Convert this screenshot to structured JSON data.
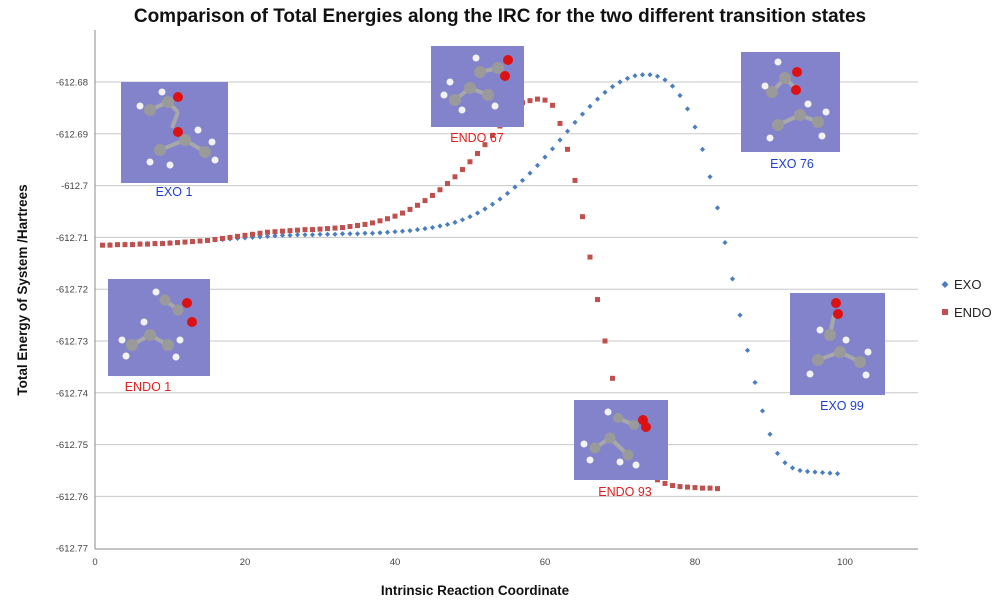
{
  "chart_data": {
    "type": "scatter",
    "title": "Comparison of Total Energies along the IRC for the two different transition states",
    "xlabel": "Intrinsic Reaction Coordinate",
    "ylabel": "Total Energy of System /Hartrees",
    "xlim": [
      0,
      110
    ],
    "ylim": [
      -612.77,
      -612.67
    ],
    "xticks": [
      0,
      20,
      40,
      60,
      80,
      100
    ],
    "xtick_labels": [
      "0",
      "20",
      "40",
      "60",
      "80",
      "100"
    ],
    "yticks": [
      -612.68,
      -612.69,
      -612.7,
      -612.71,
      -612.72,
      -612.73,
      -612.74,
      -612.75,
      -612.76,
      -612.77
    ],
    "ytick_labels": [
      "-612.68",
      "-612.69",
      "-612.7",
      "-612.71",
      "-612.72",
      "-612.73",
      "-612.74",
      "-612.75",
      "-612.76",
      "-612.77"
    ],
    "grid": "horizontal",
    "legend_position": "right",
    "series": [
      {
        "name": "EXO",
        "color": "#4a7ebf",
        "marker": "diamond",
        "points": [
          [
            1,
            -612.7115
          ],
          [
            2,
            -612.7114
          ],
          [
            3,
            -612.7114
          ],
          [
            4,
            -612.7113
          ],
          [
            5,
            -612.7113
          ],
          [
            6,
            -612.7112
          ],
          [
            7,
            -612.7112
          ],
          [
            8,
            -612.7111
          ],
          [
            9,
            -612.7111
          ],
          [
            10,
            -612.711
          ],
          [
            11,
            -612.711
          ],
          [
            12,
            -612.7109
          ],
          [
            13,
            -612.7108
          ],
          [
            14,
            -612.7107
          ],
          [
            15,
            -612.7106
          ],
          [
            16,
            -612.7105
          ],
          [
            17,
            -612.7104
          ],
          [
            18,
            -612.7103
          ],
          [
            19,
            -612.7102
          ],
          [
            20,
            -612.7101
          ],
          [
            21,
            -612.71
          ],
          [
            22,
            -612.7099
          ],
          [
            23,
            -612.7098
          ],
          [
            24,
            -612.7097
          ],
          [
            25,
            -612.7096
          ],
          [
            26,
            -612.7096
          ],
          [
            27,
            -612.7095
          ],
          [
            28,
            -612.7095
          ],
          [
            29,
            -612.7095
          ],
          [
            30,
            -612.7094
          ],
          [
            31,
            -612.7094
          ],
          [
            32,
            -612.7094
          ],
          [
            33,
            -612.7093
          ],
          [
            34,
            -612.7093
          ],
          [
            35,
            -612.7093
          ],
          [
            36,
            -612.7092
          ],
          [
            37,
            -612.7092
          ],
          [
            38,
            -612.7091
          ],
          [
            39,
            -612.709
          ],
          [
            40,
            -612.7089
          ],
          [
            41,
            -612.7088
          ],
          [
            42,
            -612.7087
          ],
          [
            43,
            -612.7085
          ],
          [
            44,
            -612.7083
          ],
          [
            45,
            -612.7081
          ],
          [
            46,
            -612.7078
          ],
          [
            47,
            -612.7075
          ],
          [
            48,
            -612.7071
          ],
          [
            49,
            -612.7066
          ],
          [
            50,
            -612.706
          ],
          [
            51,
            -612.7053
          ],
          [
            52,
            -612.7045
          ],
          [
            53,
            -612.7036
          ],
          [
            54,
            -612.7026
          ],
          [
            55,
            -612.7015
          ],
          [
            56,
            -612.7003
          ],
          [
            57,
            -612.699
          ],
          [
            58,
            -612.6976
          ],
          [
            59,
            -612.6961
          ],
          [
            60,
            -612.6945
          ],
          [
            61,
            -612.6929
          ],
          [
            62,
            -612.6912
          ],
          [
            63,
            -612.6895
          ],
          [
            64,
            -612.6878
          ],
          [
            65,
            -612.6862
          ],
          [
            66,
            -612.6847
          ],
          [
            67,
            -612.6833
          ],
          [
            68,
            -612.682
          ],
          [
            69,
            -612.6809
          ],
          [
            70,
            -612.68
          ],
          [
            71,
            -612.6793
          ],
          [
            72,
            -612.6788
          ],
          [
            73,
            -612.6786
          ],
          [
            74,
            -612.6786
          ],
          [
            75,
            -612.6789
          ],
          [
            76,
            -612.6796
          ],
          [
            77,
            -612.6808
          ],
          [
            78,
            -612.6826
          ],
          [
            79,
            -612.6852
          ],
          [
            80,
            -612.6887
          ],
          [
            81,
            -612.693
          ],
          [
            82,
            -612.6983
          ],
          [
            83,
            -612.7043
          ],
          [
            84,
            -612.711
          ],
          [
            85,
            -612.718
          ],
          [
            86,
            -612.725
          ],
          [
            87,
            -612.7318
          ],
          [
            88,
            -612.738
          ],
          [
            89,
            -612.7435
          ],
          [
            90,
            -612.748
          ],
          [
            91,
            -612.7517
          ],
          [
            92,
            -612.7535
          ],
          [
            93,
            -612.7545
          ],
          [
            94,
            -612.755
          ],
          [
            95,
            -612.7552
          ],
          [
            96,
            -612.7553
          ],
          [
            97,
            -612.7554
          ],
          [
            98,
            -612.7555
          ],
          [
            99,
            -612.7556
          ]
        ]
      },
      {
        "name": "ENDO",
        "color": "#c0504d",
        "marker": "square",
        "points": [
          [
            1,
            -612.7115
          ],
          [
            2,
            -612.7115
          ],
          [
            3,
            -612.7114
          ],
          [
            4,
            -612.7114
          ],
          [
            5,
            -612.7114
          ],
          [
            6,
            -612.7113
          ],
          [
            7,
            -612.7113
          ],
          [
            8,
            -612.7112
          ],
          [
            9,
            -612.7112
          ],
          [
            10,
            -612.7111
          ],
          [
            11,
            -612.711
          ],
          [
            12,
            -612.7109
          ],
          [
            13,
            -612.7108
          ],
          [
            14,
            -612.7107
          ],
          [
            15,
            -612.7106
          ],
          [
            16,
            -612.7104
          ],
          [
            17,
            -612.7102
          ],
          [
            18,
            -612.71
          ],
          [
            19,
            -612.7098
          ],
          [
            20,
            -612.7096
          ],
          [
            21,
            -612.7094
          ],
          [
            22,
            -612.7092
          ],
          [
            23,
            -612.709
          ],
          [
            24,
            -612.7089
          ],
          [
            25,
            -612.7088
          ],
          [
            26,
            -612.7087
          ],
          [
            27,
            -612.7086
          ],
          [
            28,
            -612.7085
          ],
          [
            29,
            -612.7085
          ],
          [
            30,
            -612.7084
          ],
          [
            31,
            -612.7083
          ],
          [
            32,
            -612.7082
          ],
          [
            33,
            -612.7081
          ],
          [
            34,
            -612.7079
          ],
          [
            35,
            -612.7077
          ],
          [
            36,
            -612.7075
          ],
          [
            37,
            -612.7072
          ],
          [
            38,
            -612.7068
          ],
          [
            39,
            -612.7064
          ],
          [
            40,
            -612.7059
          ],
          [
            41,
            -612.7053
          ],
          [
            42,
            -612.7046
          ],
          [
            43,
            -612.7038
          ],
          [
            44,
            -612.7029
          ],
          [
            45,
            -612.7019
          ],
          [
            46,
            -612.7008
          ],
          [
            47,
            -612.6996
          ],
          [
            48,
            -612.6983
          ],
          [
            49,
            -612.6969
          ],
          [
            50,
            -612.6954
          ],
          [
            51,
            -612.6938
          ],
          [
            52,
            -612.6921
          ],
          [
            53,
            -612.6903
          ],
          [
            54,
            -612.6885
          ],
          [
            55,
            -612.6867
          ],
          [
            56,
            -612.685
          ],
          [
            57,
            -612.684
          ],
          [
            58,
            -612.6836
          ],
          [
            59,
            -612.6833
          ],
          [
            60,
            -612.6835
          ],
          [
            61,
            -612.6845
          ],
          [
            62,
            -612.688
          ],
          [
            63,
            -612.693
          ],
          [
            64,
            -612.699
          ],
          [
            65,
            -612.706
          ],
          [
            66,
            -612.7138
          ],
          [
            67,
            -612.722
          ],
          [
            68,
            -612.73
          ],
          [
            69,
            -612.7372
          ],
          [
            70,
            -612.7431
          ],
          [
            71,
            -612.7477
          ],
          [
            72,
            -612.7512
          ],
          [
            73,
            -612.7538
          ],
          [
            74,
            -612.7556
          ],
          [
            75,
            -612.7568
          ],
          [
            76,
            -612.7575
          ],
          [
            77,
            -612.7579
          ],
          [
            78,
            -612.7581
          ],
          [
            79,
            -612.7582
          ],
          [
            80,
            -612.7583
          ],
          [
            81,
            -612.7584
          ],
          [
            82,
            -612.7584
          ],
          [
            83,
            -612.7585
          ]
        ]
      }
    ],
    "annotations": [
      {
        "label": "EXO 1",
        "color": "#1f3fd0"
      },
      {
        "label": "ENDO 67",
        "color": "#e02020"
      },
      {
        "label": "EXO 76",
        "color": "#1f3fd0"
      },
      {
        "label": "ENDO 1",
        "color": "#e02020"
      },
      {
        "label": "EXO 99",
        "color": "#1f3fd0"
      },
      {
        "label": "ENDO 93",
        "color": "#e02020"
      }
    ]
  }
}
